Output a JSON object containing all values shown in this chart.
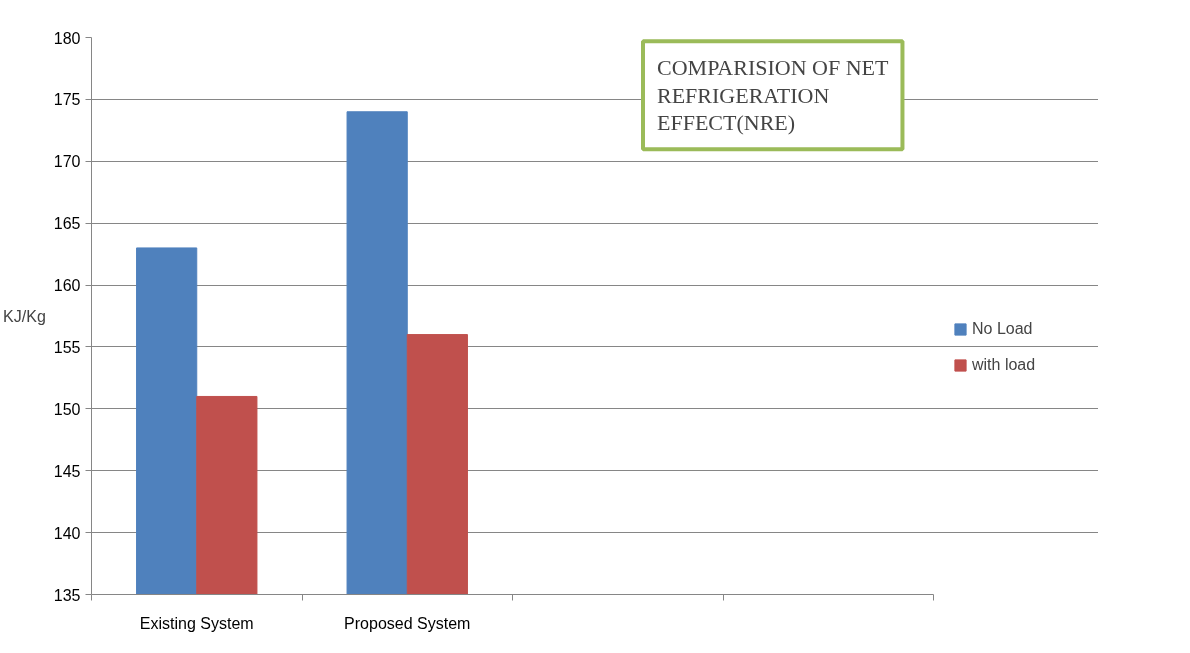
{
  "chart_data": {
    "type": "bar",
    "title": "COMPARISION OF NET REFRIGERATION EFFECT(NRE)",
    "ylabel": "KJ/Kg",
    "categories": [
      "Existing System",
      "Proposed System",
      null,
      null
    ],
    "series": [
      {
        "name": "No Load",
        "color": "#4f81bd",
        "values": [
          163,
          174,
          null,
          null
        ]
      },
      {
        "name": "with load",
        "color": "#c0504d",
        "values": [
          151,
          156,
          null,
          null
        ]
      }
    ],
    "ylim": [
      135,
      180
    ],
    "yticks": [
      135,
      140,
      145,
      150,
      155,
      160,
      165,
      170,
      175,
      180
    ],
    "grid": "y",
    "legend": "right"
  }
}
